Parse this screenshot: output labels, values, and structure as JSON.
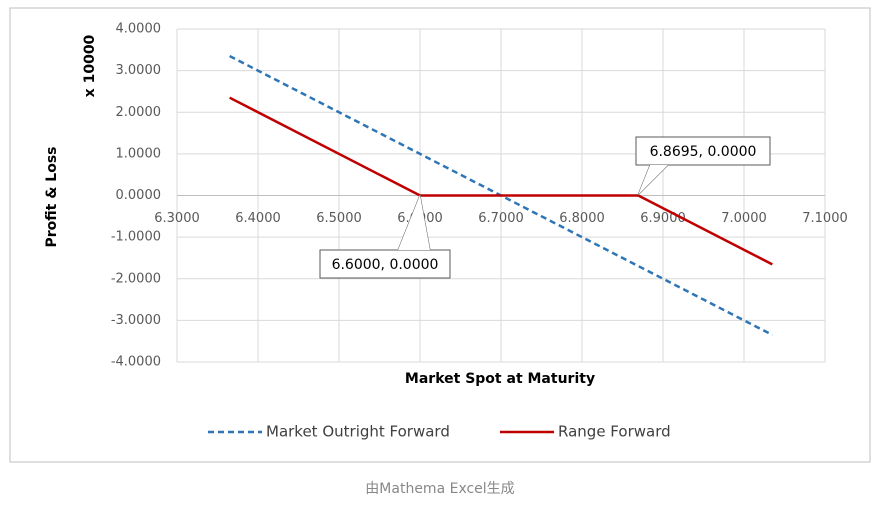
{
  "chart_data": {
    "type": "line",
    "x_label": "Market Spot at Maturity",
    "y_label": "Profit & Loss",
    "y_multiplier": "x 10000",
    "xlim": [
      6.3,
      7.1
    ],
    "xticks": [
      {
        "value": 6.3,
        "label": "6.3000"
      },
      {
        "value": 6.4,
        "label": "6.4000"
      },
      {
        "value": 6.5,
        "label": "6.5000"
      },
      {
        "value": 6.6,
        "label": "6.6000"
      },
      {
        "value": 6.7,
        "label": "6.7000"
      },
      {
        "value": 6.8,
        "label": "6.8000"
      },
      {
        "value": 6.9,
        "label": "6.9000"
      },
      {
        "value": 7.0,
        "label": "7.0000"
      },
      {
        "value": 7.1,
        "label": "7.1000"
      }
    ],
    "ylim": [
      -4,
      4
    ],
    "yticks": [
      {
        "value": -4,
        "label": "-4.0000"
      },
      {
        "value": -3,
        "label": "-3.0000"
      },
      {
        "value": -2,
        "label": "-2.0000"
      },
      {
        "value": -1,
        "label": "-1.0000"
      },
      {
        "value": 0,
        "label": "0.0000"
      },
      {
        "value": 1,
        "label": "1.0000"
      },
      {
        "value": 2,
        "label": "2.0000"
      },
      {
        "value": 3,
        "label": "3.0000"
      },
      {
        "value": 4,
        "label": "4.0000"
      }
    ],
    "grid": true,
    "legend": "bottom",
    "series": [
      {
        "name": "Market Outright Forward",
        "color": "#2e75b6",
        "dashed": true,
        "x": [
          6.365,
          7.035
        ],
        "values": [
          3.35,
          -3.35
        ]
      },
      {
        "name": "Range Forward",
        "color": "#c00000",
        "dashed": false,
        "x": [
          6.365,
          6.6,
          6.8695,
          7.035
        ],
        "values": [
          2.35,
          0,
          0,
          -1.655
        ]
      }
    ],
    "annotations": [
      "6.6000, 0.0000",
      "6.8695, 0.0000"
    ]
  },
  "caption": "由Mathema Excel生成"
}
